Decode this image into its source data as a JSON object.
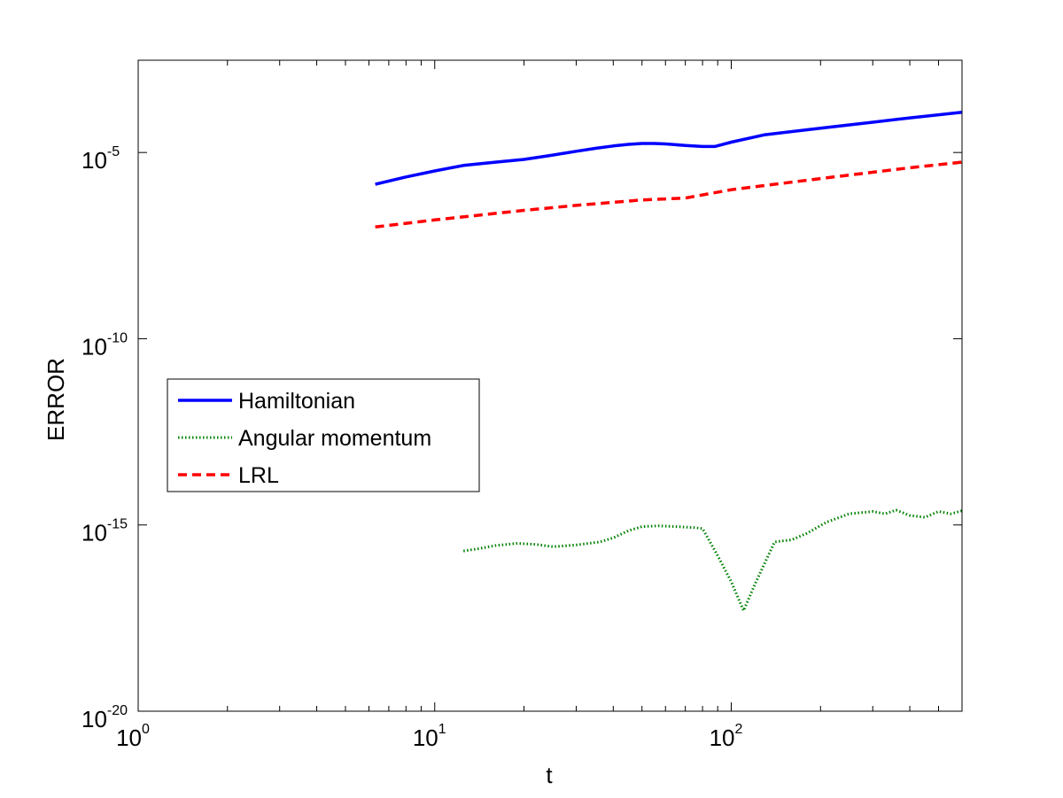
{
  "chart_data": {
    "type": "line",
    "title": "",
    "xlabel": "t",
    "ylabel": "ERROR",
    "x_scale": "log",
    "y_scale": "log",
    "xlim": [
      1,
      600
    ],
    "ylim": [
      1e-20,
      0.003
    ],
    "grid": false,
    "legend_position": "center-left",
    "x_ticks": [
      {
        "value": 1,
        "base": "10",
        "exp": "0"
      },
      {
        "value": 10,
        "base": "10",
        "exp": "1"
      },
      {
        "value": 100,
        "base": "10",
        "exp": "2"
      }
    ],
    "y_ticks": [
      {
        "value": 1e-20,
        "base": "10",
        "exp": "-20"
      },
      {
        "value": 1e-15,
        "base": "10",
        "exp": "-15"
      },
      {
        "value": 1e-10,
        "base": "10",
        "exp": "-10"
      },
      {
        "value": 1e-05,
        "base": "10",
        "exp": "-5"
      }
    ],
    "series": [
      {
        "name": "Hamiltonian",
        "color": "#0000ff",
        "style": "solid",
        "x": [
          6.3,
          8,
          10,
          12.5,
          16,
          20,
          25,
          30,
          35,
          40,
          45,
          50,
          55,
          60,
          70,
          80,
          88,
          100,
          130,
          200,
          300,
          400,
          600
        ],
        "y": [
          1.4e-06,
          2.2e-06,
          3.2e-06,
          4.5e-06,
          5.5e-06,
          6.5e-06,
          8.5e-06,
          1.08e-05,
          1.3e-05,
          1.5e-05,
          1.65e-05,
          1.75e-05,
          1.75e-05,
          1.7e-05,
          1.55e-05,
          1.45e-05,
          1.45e-05,
          1.9e-05,
          3e-05,
          4.5e-05,
          6.5e-05,
          8.5e-05,
          0.00012
        ]
      },
      {
        "name": "Angular momentum",
        "color": "#008000",
        "style": "dotted",
        "x": [
          12.5,
          14,
          16,
          19,
          22,
          25,
          30,
          36,
          40,
          45,
          50,
          57,
          65,
          75,
          80,
          90,
          100,
          110,
          120,
          140,
          160,
          180,
          210,
          250,
          300,
          330,
          360,
          400,
          450,
          500,
          550,
          600
        ],
        "y": [
          2e-16,
          2.3e-16,
          2.8e-16,
          3.2e-16,
          3e-16,
          2.6e-16,
          2.9e-16,
          3.5e-16,
          4.5e-16,
          7e-16,
          9e-16,
          9.5e-16,
          9e-16,
          8.5e-16,
          8e-16,
          1.5e-16,
          3e-17,
          5e-18,
          2.5e-17,
          3.5e-16,
          4e-16,
          6e-16,
          1.2e-15,
          2e-15,
          2.3e-15,
          2e-15,
          2.5e-15,
          1.8e-15,
          1.6e-15,
          2.3e-15,
          2e-15,
          2.4e-15
        ]
      },
      {
        "name": "LRL",
        "color": "#ff0000",
        "style": "dashed",
        "x": [
          6.3,
          10,
          20,
          30,
          40,
          50,
          70,
          100,
          200,
          400,
          600
        ],
        "y": [
          1e-07,
          1.55e-07,
          2.8e-07,
          3.8e-07,
          4.6e-07,
          5.3e-07,
          6e-07,
          1e-06,
          2e-06,
          3.9e-06,
          5.5e-06
        ]
      }
    ]
  }
}
